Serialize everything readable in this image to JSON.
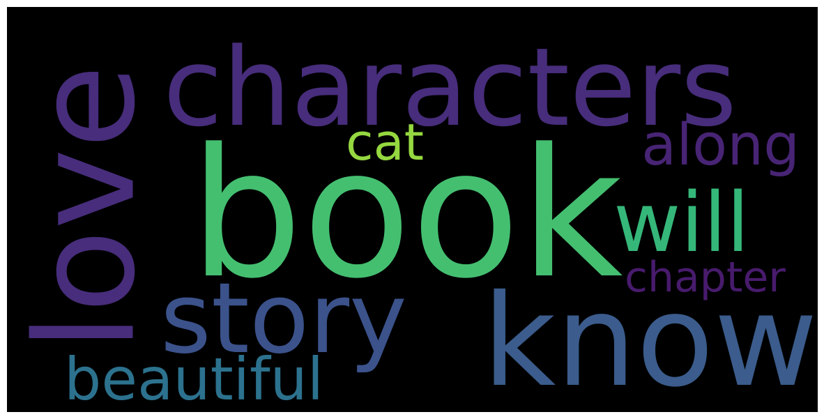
{
  "background_color": "#000000",
  "words": [
    {
      "id": "love",
      "text": "love",
      "color": "#472d7b",
      "orientation": "vertical"
    },
    {
      "id": "characters",
      "text": "characters",
      "color": "#472d7b",
      "orientation": "horizontal"
    },
    {
      "id": "book",
      "text": "book",
      "color": "#44bf70",
      "orientation": "horizontal"
    },
    {
      "id": "cat",
      "text": "cat",
      "color": "#95d840",
      "orientation": "horizontal"
    },
    {
      "id": "along",
      "text": "along",
      "color": "#482475",
      "orientation": "horizontal"
    },
    {
      "id": "will",
      "text": "will",
      "color": "#35b779",
      "orientation": "horizontal"
    },
    {
      "id": "chapter",
      "text": "chapter",
      "color": "#481b6d",
      "orientation": "horizontal"
    },
    {
      "id": "story",
      "text": "story",
      "color": "#3b528b",
      "orientation": "horizontal"
    },
    {
      "id": "know",
      "text": "know",
      "color": "#3b5c8c",
      "orientation": "horizontal"
    },
    {
      "id": "beautiful",
      "text": "beautiful",
      "color": "#2c728e",
      "orientation": "horizontal"
    }
  ]
}
